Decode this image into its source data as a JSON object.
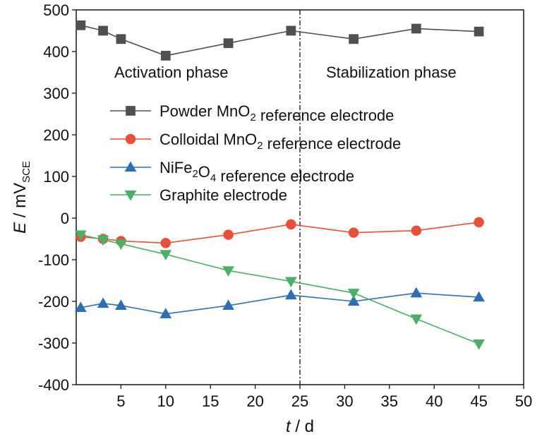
{
  "chart_data": {
    "type": "line",
    "xlabel": {
      "var": "t",
      "unit": " / d"
    },
    "ylabel": {
      "var": "E",
      "unit": " / mV",
      "sub": "SCE"
    },
    "xlim": [
      0,
      50
    ],
    "ylim": [
      -400,
      500
    ],
    "xticks": [
      5,
      10,
      15,
      20,
      25,
      30,
      35,
      40,
      45,
      50
    ],
    "yticks": [
      -400,
      -300,
      -200,
      -100,
      0,
      100,
      200,
      300,
      400,
      500
    ],
    "grid": false,
    "divider_x": 25,
    "phases": [
      "Activation phase",
      "Stabilization phase"
    ],
    "legend_position": "upper-left",
    "series": [
      {
        "name": "Powder MnO2 reference electrode",
        "label_parts": [
          [
            "Powder MnO",
            ""
          ],
          [
            "2",
            "sub"
          ],
          [
            " reference electrode",
            ""
          ]
        ],
        "color": "#505050",
        "marker": "square",
        "x": [
          0.5,
          3,
          5,
          10,
          17,
          24,
          31,
          38,
          45
        ],
        "y": [
          463,
          450,
          430,
          390,
          420,
          450,
          430,
          455,
          448
        ]
      },
      {
        "name": "Colloidal MnO2 reference electrode",
        "label_parts": [
          [
            "Colloidal MnO",
            ""
          ],
          [
            "2",
            "sub"
          ],
          [
            " reference electrode",
            ""
          ]
        ],
        "color": "#e8503a",
        "marker": "circle",
        "x": [
          0.5,
          3,
          5,
          10,
          17,
          24,
          31,
          38,
          45
        ],
        "y": [
          -45,
          -50,
          -55,
          -60,
          -40,
          -15,
          -35,
          -30,
          -10
        ]
      },
      {
        "name": "NiFe2O4 reference electrode",
        "label_parts": [
          [
            "NiFe",
            ""
          ],
          [
            "2",
            "sub"
          ],
          [
            "O",
            ""
          ],
          [
            "4",
            "sub"
          ],
          [
            " reference electrode",
            ""
          ]
        ],
        "color": "#2d6fb7",
        "marker": "triangle-up",
        "x": [
          0.5,
          3,
          5,
          10,
          17,
          24,
          31,
          38,
          45
        ],
        "y": [
          -215,
          -205,
          -210,
          -230,
          -210,
          -185,
          -200,
          -180,
          -190
        ]
      },
      {
        "name": "Graphite electrode",
        "label_parts": [
          [
            "Graphite electrode",
            ""
          ]
        ],
        "color": "#4caf66",
        "marker": "triangle-down",
        "x": [
          0.5,
          3,
          5,
          10,
          17,
          24,
          31,
          38,
          45
        ],
        "y": [
          -40,
          -52,
          -62,
          -87,
          -126,
          -152,
          -180,
          -242,
          -302
        ]
      }
    ]
  }
}
